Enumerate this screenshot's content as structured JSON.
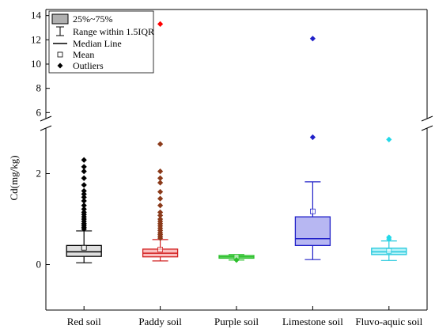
{
  "chart_data": {
    "type": "box",
    "ylabel": "Cd(mg/kg)",
    "y_axis_break": {
      "lower_range": [
        -1,
        3.0
      ],
      "upper_range": [
        5.5,
        14.5
      ]
    },
    "lower_ticks": [
      0,
      2
    ],
    "upper_ticks": [
      6,
      8,
      10,
      12,
      14
    ],
    "legend": {
      "position": "top-left",
      "entries": [
        "25%~75%",
        "Range within 1.5IQR",
        "Median Line",
        "Mean",
        "Outliers"
      ]
    },
    "categories": [
      "Red soil",
      "Paddy soil",
      "Purple soil",
      "Limestone soil",
      "Fluvo-aquic soil"
    ],
    "series": [
      {
        "q1": 0.18,
        "median": 0.28,
        "q3": 0.42,
        "whisker_low": 0.04,
        "whisker_high": 0.74,
        "mean": 0.37,
        "outliers": [
          0.78,
          0.82,
          0.86,
          0.9,
          0.95,
          1.0,
          1.05,
          1.1,
          1.15,
          1.22,
          1.3,
          1.4,
          1.48,
          1.55,
          1.62,
          1.75,
          1.9,
          2.05,
          2.15,
          2.3
        ]
      },
      {
        "q1": 0.17,
        "median": 0.25,
        "q3": 0.34,
        "whisker_low": 0.08,
        "whisker_high": 0.55,
        "mean": 0.33,
        "outliers": [
          0.58,
          0.62,
          0.66,
          0.7,
          0.75,
          0.8,
          0.85,
          0.9,
          0.95,
          1.0,
          1.08,
          1.15,
          1.3,
          1.45,
          1.6,
          1.8,
          1.9,
          2.05,
          2.65,
          13.3
        ]
      },
      {
        "q1": 0.14,
        "median": 0.17,
        "q3": 0.2,
        "whisker_low": 0.1,
        "whisker_high": 0.22,
        "mean": 0.17,
        "outliers": [
          0.1
        ]
      },
      {
        "q1": 0.42,
        "median": 0.57,
        "q3": 1.05,
        "whisker_low": 0.11,
        "whisker_high": 1.82,
        "mean": 1.17,
        "outliers": [
          2.8,
          12.1
        ]
      },
      {
        "q1": 0.22,
        "median": 0.28,
        "q3": 0.36,
        "whisker_low": 0.09,
        "whisker_high": 0.52,
        "mean": 0.3,
        "outliers": [
          0.56,
          0.6,
          2.75
        ]
      }
    ],
    "colors": {
      "box_fill": [
        "#d9d9d9",
        "#f9b3b3",
        "#a8f0a8",
        "#aaaaf0",
        "#a8f0f7"
      ],
      "box_line": [
        "#000000",
        "#d22020",
        "#2bbf2b",
        "#2020c8",
        "#22c8dc"
      ],
      "outlier": [
        "#000000",
        "#8b3a1a",
        "#2bbf2b",
        "#2020c8",
        "#22d8e8"
      ],
      "highlight": [
        "",
        "#ff0000",
        "",
        "",
        ""
      ],
      "legend_box_fill": "#b0b0b0"
    }
  }
}
